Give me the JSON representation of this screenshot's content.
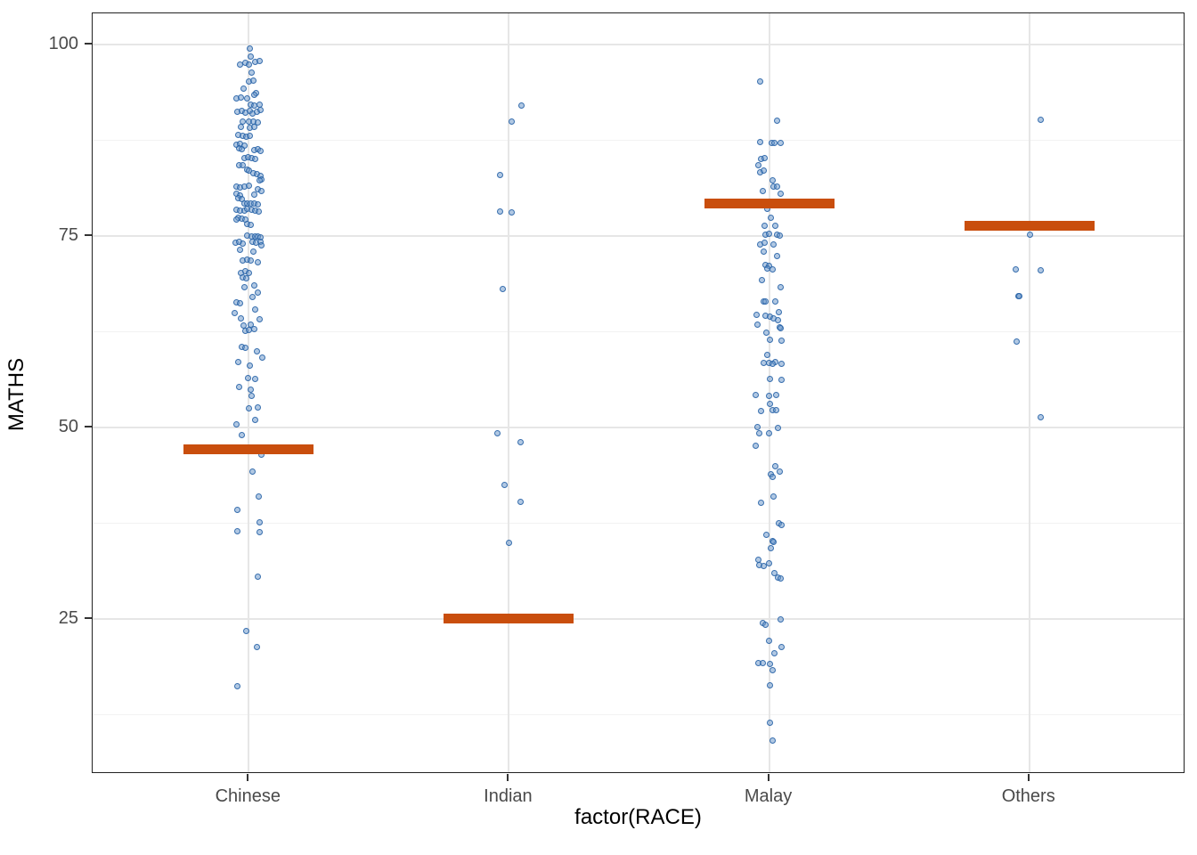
{
  "figure": {
    "x_axis_label": "factor(RACE)",
    "y_axis_label": "MATHS"
  },
  "chart_data": {
    "type": "scatter",
    "subtype": "jitter-strip-plot-with-summary-crossbars",
    "title": "",
    "xlabel": "factor(RACE)",
    "ylabel": "MATHS",
    "categories": [
      "Chinese",
      "Indian",
      "Malay",
      "Others"
    ],
    "y_major_ticks": [
      25,
      50,
      75,
      100
    ],
    "y_minor_ticks": [
      12.5,
      37.5,
      62.5,
      87.5
    ],
    "ylim": [
      4.7,
      104.1
    ],
    "grid": "on",
    "legend": "none",
    "point_color": "#3a76b4",
    "crossbar_color": "#c94e0d",
    "crossbar_values": {
      "Chinese": 47,
      "Indian": 25,
      "Malay": 79,
      "Others": 76
    },
    "groups": [
      {
        "label": "Chinese",
        "crossbar": 47.2,
        "points": [
          [
            99.5,
            1
          ],
          [
            98.4,
            2
          ],
          [
            97.4,
            -10
          ],
          [
            97.6,
            -4
          ],
          [
            97.4,
            0
          ],
          [
            97.7,
            7
          ],
          [
            97.9,
            12
          ],
          [
            96.3,
            3
          ],
          [
            95.2,
            0
          ],
          [
            95.3,
            5
          ],
          [
            94.3,
            -6
          ],
          [
            93.7,
            8
          ],
          [
            93.0,
            -14
          ],
          [
            93.1,
            -9
          ],
          [
            93.0,
            -2
          ],
          [
            93.4,
            6
          ],
          [
            92.1,
            2
          ],
          [
            92.0,
            6
          ],
          [
            92.1,
            12
          ],
          [
            91.2,
            -13
          ],
          [
            91.3,
            -8
          ],
          [
            91.1,
            -4
          ],
          [
            91.3,
            1
          ],
          [
            91.0,
            4
          ],
          [
            91.2,
            9
          ],
          [
            91.4,
            13
          ],
          [
            90.0,
            -7
          ],
          [
            89.9,
            0
          ],
          [
            90.0,
            5
          ],
          [
            89.8,
            10
          ],
          [
            89.3,
            -9
          ],
          [
            89.1,
            1
          ],
          [
            89.3,
            6
          ],
          [
            88.2,
            -12
          ],
          [
            88.1,
            -7
          ],
          [
            88.0,
            -3
          ],
          [
            88.1,
            1
          ],
          [
            86.9,
            -14
          ],
          [
            87.0,
            -10
          ],
          [
            86.8,
            -5
          ],
          [
            86.4,
            -11
          ],
          [
            86.3,
            -8
          ],
          [
            86.2,
            6
          ],
          [
            86.3,
            10
          ],
          [
            86.1,
            13
          ],
          [
            85.2,
            -5
          ],
          [
            85.3,
            -1
          ],
          [
            85.2,
            3
          ],
          [
            85.1,
            7
          ],
          [
            84.3,
            -11
          ],
          [
            84.2,
            -7
          ],
          [
            83.7,
            -2
          ],
          [
            83.6,
            0
          ],
          [
            83.2,
            5
          ],
          [
            83.1,
            9
          ],
          [
            82.9,
            13
          ],
          [
            82.4,
            14
          ],
          [
            82.3,
            12
          ],
          [
            81.4,
            -14
          ],
          [
            81.3,
            -10
          ],
          [
            81.5,
            -5
          ],
          [
            81.6,
            0
          ],
          [
            81.1,
            10
          ],
          [
            80.9,
            14
          ],
          [
            80.5,
            -14
          ],
          [
            80.3,
            -10
          ],
          [
            80.4,
            6
          ],
          [
            79.9,
            -12
          ],
          [
            79.8,
            -8
          ],
          [
            79.3,
            -5
          ],
          [
            79.2,
            -2
          ],
          [
            79.2,
            2
          ],
          [
            79.3,
            6
          ],
          [
            79.1,
            10
          ],
          [
            78.4,
            -14
          ],
          [
            78.3,
            -10
          ],
          [
            78.3,
            -5
          ],
          [
            78.5,
            -2
          ],
          [
            78.4,
            3
          ],
          [
            78.3,
            7
          ],
          [
            78.2,
            11
          ],
          [
            77.4,
            -12
          ],
          [
            77.3,
            -8
          ],
          [
            77.2,
            -4
          ],
          [
            77.1,
            -14
          ],
          [
            76.6,
            -2
          ],
          [
            76.5,
            2
          ],
          [
            75.1,
            -2
          ],
          [
            75.0,
            3
          ],
          [
            74.9,
            7
          ],
          [
            75.0,
            10
          ],
          [
            74.8,
            13
          ],
          [
            74.1,
            -15
          ],
          [
            74.2,
            -11
          ],
          [
            74.0,
            -7
          ],
          [
            74.3,
            4
          ],
          [
            74.1,
            8
          ],
          [
            74.3,
            13
          ],
          [
            73.8,
            14
          ],
          [
            73.2,
            -10
          ],
          [
            73.0,
            5
          ],
          [
            71.8,
            -7
          ],
          [
            71.9,
            -2
          ],
          [
            71.8,
            2
          ],
          [
            71.6,
            10
          ],
          [
            70.2,
            -9
          ],
          [
            70.4,
            -4
          ],
          [
            70.2,
            0
          ],
          [
            69.6,
            -7
          ],
          [
            69.5,
            -3
          ],
          [
            68.3,
            -5
          ],
          [
            68.5,
            6
          ],
          [
            67.6,
            10
          ],
          [
            67.0,
            4
          ],
          [
            66.3,
            -14
          ],
          [
            66.2,
            -10
          ],
          [
            65.4,
            7
          ],
          [
            65.0,
            -16
          ],
          [
            64.3,
            -9
          ],
          [
            64.1,
            12
          ],
          [
            63.4,
            2
          ],
          [
            63.3,
            -6
          ],
          [
            62.6,
            -4
          ],
          [
            62.7,
            0
          ],
          [
            62.8,
            6
          ],
          [
            60.5,
            -8
          ],
          [
            60.4,
            -4
          ],
          [
            60.0,
            9
          ],
          [
            59.1,
            15
          ],
          [
            58.5,
            -12
          ],
          [
            58.1,
            1
          ],
          [
            56.5,
            -1
          ],
          [
            56.3,
            7
          ],
          [
            55.3,
            -11
          ],
          [
            55.0,
            2
          ],
          [
            54.1,
            3
          ],
          [
            52.5,
            0
          ],
          [
            52.6,
            10
          ],
          [
            51.0,
            7
          ],
          [
            50.4,
            -14
          ],
          [
            49.0,
            -8
          ],
          [
            46.4,
            14
          ],
          [
            44.3,
            4
          ],
          [
            41.0,
            11
          ],
          [
            39.3,
            -13
          ],
          [
            37.6,
            12
          ],
          [
            36.5,
            -13
          ],
          [
            36.3,
            12
          ],
          [
            30.5,
            10
          ],
          [
            23.4,
            -3
          ],
          [
            21.3,
            9
          ],
          [
            16.2,
            -13
          ]
        ]
      },
      {
        "label": "Indian",
        "crossbar": 25.1,
        "points": [
          [
            92.0,
            14
          ],
          [
            90.0,
            3
          ],
          [
            83.0,
            -10
          ],
          [
            78.2,
            -10
          ],
          [
            78.1,
            3
          ],
          [
            68.1,
            -7
          ],
          [
            49.3,
            -13
          ],
          [
            48.1,
            13
          ],
          [
            42.5,
            -5
          ],
          [
            40.3,
            13
          ],
          [
            35.0,
            0
          ]
        ]
      },
      {
        "label": "Malay",
        "crossbar": 79.3,
        "points": [
          [
            95.2,
            -10
          ],
          [
            90.1,
            9
          ],
          [
            87.3,
            -10
          ],
          [
            87.2,
            3
          ],
          [
            87.2,
            6
          ],
          [
            87.2,
            13
          ],
          [
            85.1,
            -9
          ],
          [
            85.2,
            -5
          ],
          [
            84.3,
            -12
          ],
          [
            83.3,
            -10
          ],
          [
            83.5,
            -6
          ],
          [
            82.3,
            4
          ],
          [
            81.4,
            5
          ],
          [
            81.4,
            9
          ],
          [
            80.9,
            -7
          ],
          [
            80.5,
            13
          ],
          [
            78.6,
            -2
          ],
          [
            77.4,
            2
          ],
          [
            76.3,
            -5
          ],
          [
            76.3,
            7
          ],
          [
            75.2,
            -4
          ],
          [
            75.3,
            0
          ],
          [
            75.2,
            9
          ],
          [
            75.1,
            12
          ],
          [
            73.9,
            -10
          ],
          [
            74.1,
            -5
          ],
          [
            73.9,
            5
          ],
          [
            73.0,
            -6
          ],
          [
            72.4,
            9
          ],
          [
            71.2,
            -4
          ],
          [
            71.1,
            0
          ],
          [
            70.7,
            -2
          ],
          [
            70.6,
            4
          ],
          [
            69.2,
            -8
          ],
          [
            68.3,
            13
          ],
          [
            66.4,
            -6
          ],
          [
            66.4,
            -4
          ],
          [
            66.4,
            7
          ],
          [
            65.1,
            11
          ],
          [
            64.7,
            -14
          ],
          [
            64.6,
            -4
          ],
          [
            64.5,
            1
          ],
          [
            64.2,
            5
          ],
          [
            64.0,
            10
          ],
          [
            63.4,
            -13
          ],
          [
            63.1,
            12
          ],
          [
            63.0,
            13
          ],
          [
            62.4,
            -3
          ],
          [
            61.5,
            1
          ],
          [
            61.3,
            14
          ],
          [
            59.5,
            -2
          ],
          [
            58.5,
            7
          ],
          [
            58.4,
            -6
          ],
          [
            58.4,
            0
          ],
          [
            58.3,
            4
          ],
          [
            58.3,
            14
          ],
          [
            56.3,
            1
          ],
          [
            56.2,
            14
          ],
          [
            54.2,
            -15
          ],
          [
            54.1,
            0
          ],
          [
            54.2,
            8
          ],
          [
            53.1,
            1
          ],
          [
            52.2,
            -9
          ],
          [
            52.3,
            4
          ],
          [
            52.3,
            8
          ],
          [
            50.1,
            -13
          ],
          [
            50.0,
            10
          ],
          [
            49.2,
            -11
          ],
          [
            49.3,
            0
          ],
          [
            47.6,
            -15
          ],
          [
            45.0,
            7
          ],
          [
            44.3,
            12
          ],
          [
            43.9,
            2
          ],
          [
            43.6,
            4
          ],
          [
            41.0,
            5
          ],
          [
            40.2,
            -9
          ],
          [
            37.5,
            11
          ],
          [
            37.3,
            14
          ],
          [
            36.0,
            -3
          ],
          [
            35.2,
            4
          ],
          [
            35.1,
            5
          ],
          [
            34.3,
            2
          ],
          [
            32.7,
            -12
          ],
          [
            32.3,
            0
          ],
          [
            32.0,
            -11
          ],
          [
            31.9,
            -6
          ],
          [
            31.0,
            6
          ],
          [
            30.4,
            10
          ],
          [
            30.3,
            13
          ],
          [
            25.0,
            13
          ],
          [
            24.5,
            -7
          ],
          [
            24.2,
            -4
          ],
          [
            22.2,
            0
          ],
          [
            21.3,
            14
          ],
          [
            20.5,
            6
          ],
          [
            19.3,
            -12
          ],
          [
            19.3,
            -7
          ],
          [
            19.1,
            1
          ],
          [
            18.3,
            4
          ],
          [
            16.3,
            1
          ],
          [
            11.4,
            1
          ],
          [
            9.1,
            4
          ]
        ]
      },
      {
        "label": "Others",
        "crossbar": 76.3,
        "points": [
          [
            90.2,
            13
          ],
          [
            75.2,
            1
          ],
          [
            70.6,
            -15
          ],
          [
            70.5,
            13
          ],
          [
            67.2,
            -12
          ],
          [
            67.1,
            -11
          ],
          [
            61.2,
            -14
          ],
          [
            51.3,
            13
          ]
        ]
      }
    ]
  }
}
